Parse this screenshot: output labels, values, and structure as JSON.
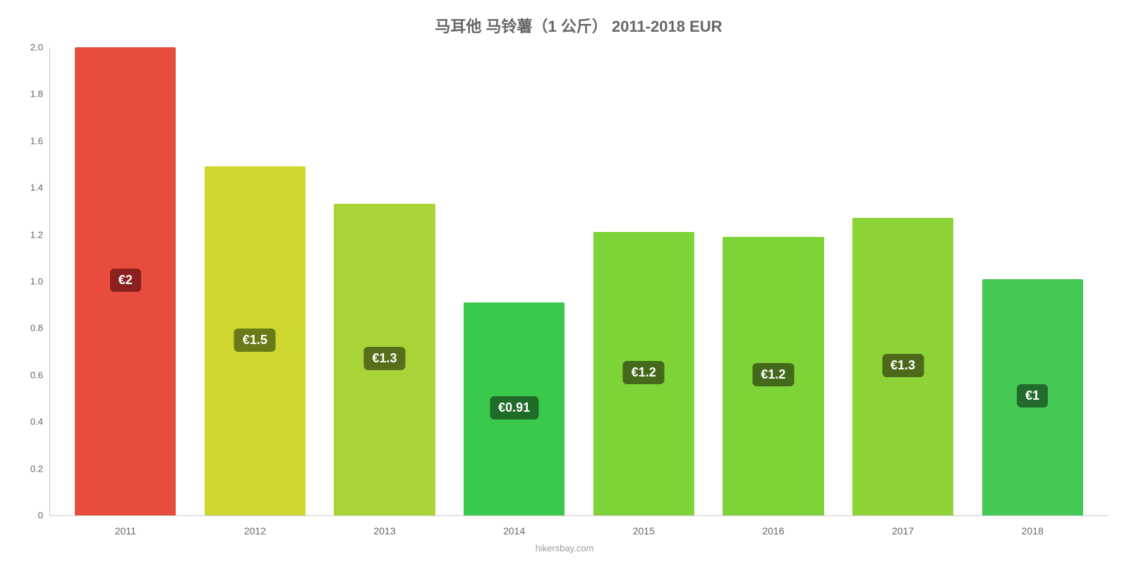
{
  "chart": {
    "type": "bar",
    "title": "马耳他 马铃薯（1 公斤） 2011-2018 EUR",
    "title_fontsize": 22,
    "title_color": "#666666",
    "background_color": "#ffffff",
    "axis_color": "#cccccc",
    "tick_color": "#666666",
    "tick_fontsize": 13,
    "xlabel_fontsize": 14,
    "ylim": [
      0,
      2.0
    ],
    "yticks": [
      {
        "value": 0,
        "label": "0",
        "pos_pct": 0
      },
      {
        "value": 0.2,
        "label": "0.2",
        "pos_pct": 10
      },
      {
        "value": 0.4,
        "label": "0.4",
        "pos_pct": 20
      },
      {
        "value": 0.6,
        "label": "0.6",
        "pos_pct": 30
      },
      {
        "value": 0.8,
        "label": "0.8",
        "pos_pct": 40
      },
      {
        "value": 1.0,
        "label": "1.0",
        "pos_pct": 50
      },
      {
        "value": 1.2,
        "label": "1.2",
        "pos_pct": 60
      },
      {
        "value": 1.4,
        "label": "1.4",
        "pos_pct": 70
      },
      {
        "value": 1.6,
        "label": "1.6",
        "pos_pct": 80
      },
      {
        "value": 1.8,
        "label": "1.8",
        "pos_pct": 90
      },
      {
        "value": 2.0,
        "label": "2.0",
        "pos_pct": 100
      }
    ],
    "bars": [
      {
        "category": "2011",
        "value": 2.0,
        "height_pct": 100,
        "fill_color": "#e74c3c",
        "label": "€2",
        "label_bg": "#8b2020"
      },
      {
        "category": "2012",
        "value": 1.5,
        "height_pct": 74.5,
        "fill_color": "#cdd730",
        "label": "€1.5",
        "label_bg": "#6b7a18"
      },
      {
        "category": "2013",
        "value": 1.3,
        "height_pct": 66.5,
        "fill_color": "#a9d438",
        "label": "€1.3",
        "label_bg": "#586e1a"
      },
      {
        "category": "2014",
        "value": 0.91,
        "height_pct": 45.5,
        "fill_color": "#3ac94a",
        "label": "€0.91",
        "label_bg": "#1f6b28"
      },
      {
        "category": "2015",
        "value": 1.2,
        "height_pct": 60.5,
        "fill_color": "#7ed338",
        "label": "€1.2",
        "label_bg": "#44691a"
      },
      {
        "category": "2016",
        "value": 1.2,
        "height_pct": 59.5,
        "fill_color": "#7ed338",
        "label": "€1.2",
        "label_bg": "#44691a"
      },
      {
        "category": "2017",
        "value": 1.3,
        "height_pct": 63.5,
        "fill_color": "#8dd338",
        "label": "€1.3",
        "label_bg": "#4c691a"
      },
      {
        "category": "2018",
        "value": 1.0,
        "height_pct": 50.5,
        "fill_color": "#44ca54",
        "label": "€1",
        "label_bg": "#236b2c"
      }
    ],
    "bar_width_pct": 78,
    "label_fontsize": 18,
    "attribution": "hikersbay.com",
    "attribution_color": "#999999"
  }
}
